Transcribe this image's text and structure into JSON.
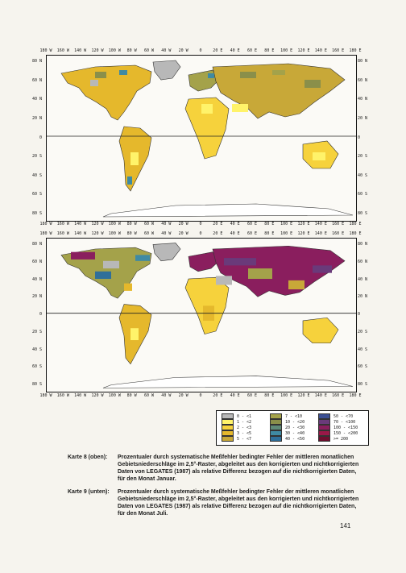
{
  "maps": [
    {
      "id": "karte8",
      "lon_labels": [
        "180 W",
        "160 W",
        "140 W",
        "120 W",
        "100 W",
        "80 W",
        "60 W",
        "40 W",
        "20 W",
        "0",
        "20 E",
        "40 E",
        "60 E",
        "80 E",
        "100 E",
        "120 E",
        "140 E",
        "160 E",
        "180 E"
      ],
      "lat_labels_left": [
        "80 N",
        "60 N",
        "40 N",
        "20 N",
        "0",
        "20 S",
        "40 S",
        "60 S",
        "80 S"
      ],
      "lat_labels_right": [
        "80 N",
        "60 N",
        "40 N",
        "20 N",
        "0",
        "20 S",
        "40 S",
        "60 S",
        "80 S"
      ],
      "dominant_class": "low-error-yellow-olive"
    },
    {
      "id": "karte9",
      "lon_labels": [
        "180 W",
        "160 W",
        "140 W",
        "120 W",
        "100 W",
        "80 W",
        "60 W",
        "40 W",
        "20 W",
        "0",
        "20 E",
        "40 E",
        "60 E",
        "80 E",
        "100 E",
        "120 E",
        "140 E",
        "160 E",
        "180 E"
      ],
      "lat_labels_left": [
        "80 N",
        "60 N",
        "40 N",
        "20 N",
        "0",
        "20 S",
        "40 S",
        "60 S",
        "80 S"
      ],
      "lat_labels_right": [
        "80 N",
        "60 N",
        "40 N",
        "20 N",
        "0",
        "20 S",
        "40 S",
        "60 S",
        "80 S"
      ],
      "dominant_class": "high-error-purple-north"
    }
  ],
  "legend": {
    "items": [
      {
        "label": "0  - <1",
        "color": "#b8b8b8"
      },
      {
        "label": "1  - <2",
        "color": "#fff36a"
      },
      {
        "label": "2  - <3",
        "color": "#f6d23c"
      },
      {
        "label": "3  - <5",
        "color": "#e5b82c"
      },
      {
        "label": "5  - <7",
        "color": "#c8a838"
      },
      {
        "label": "7  - <10",
        "color": "#a4a24a"
      },
      {
        "label": "10 - <20",
        "color": "#8a8f4a"
      },
      {
        "label": "20 - <30",
        "color": "#5f8a78"
      },
      {
        "label": "30 - <40",
        "color": "#3f8aa3"
      },
      {
        "label": "40 - <50",
        "color": "#2f6f9a"
      },
      {
        "label": "50 - <70",
        "color": "#3b4f93"
      },
      {
        "label": "70 - <100",
        "color": "#6a3a7a"
      },
      {
        "label": "100 - <150",
        "color": "#8a1e5e"
      },
      {
        "label": "150 - <200",
        "color": "#9a1848"
      },
      {
        "label": ">= 200",
        "color": "#6e0e2e"
      }
    ]
  },
  "captions": [
    {
      "label": "Karte 8 (oben):",
      "text": "Prozentualer durch systematische Meßfehler bedingter Fehler der mittleren monatlichen Gebietsniederschläge im 2,5°-Raster, abgeleitet aus den korrigierten und nichtkorrigierten Daten von LEGATES (1987) als relative Differenz bezogen auf die nichtkorrigierten Daten, für den Monat Januar."
    },
    {
      "label": "Karte 9 (unten):",
      "text": "Prozentualer durch systematische Meßfehler bedingter Fehler der mittleren monatlichen Gebietsniederschläge im 2,5°-Raster, abgeleitet aus den korrigierten und nichtkorrigierten Daten von LEGATES (1987) als relative Differenz bezogen auf die nichtkorrigierten Daten, für den Monat Juli."
    }
  ],
  "page_number": "141",
  "colors": {
    "ocean": "#fbfaf6",
    "equator_line": "#222222",
    "frame": "#111111"
  }
}
